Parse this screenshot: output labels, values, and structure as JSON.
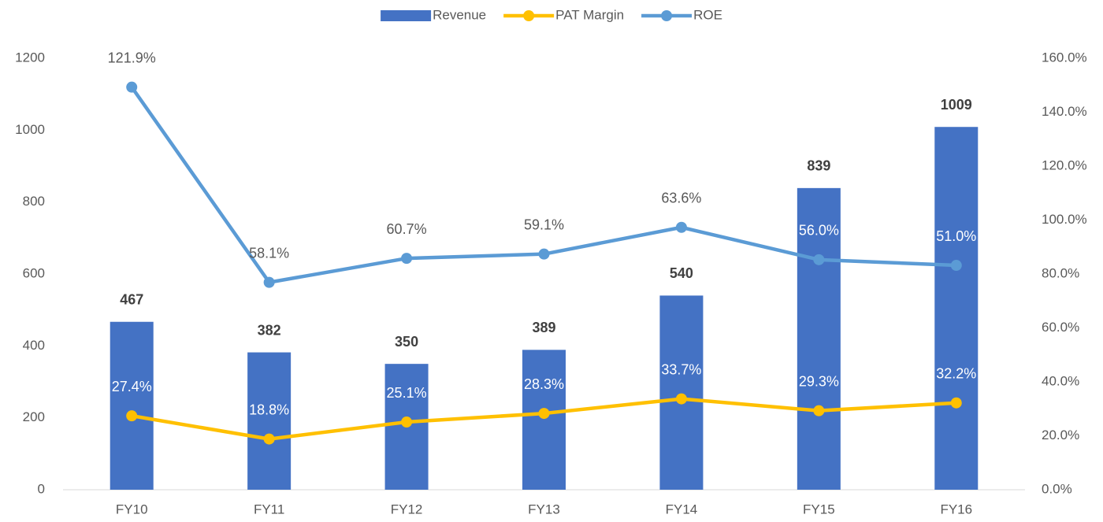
{
  "chart_data": {
    "type": "bar-line",
    "categories": [
      "FY10",
      "FY11",
      "FY12",
      "FY13",
      "FY14",
      "FY15",
      "FY16"
    ],
    "series": [
      {
        "name": "Revenue",
        "type": "bar",
        "color": "#4472c4",
        "values": [
          467,
          382,
          350,
          389,
          540,
          839,
          1009
        ]
      },
      {
        "name": "PAT Margin",
        "type": "line",
        "axis": "y2",
        "color": "#ffc000",
        "values": [
          27.4,
          18.8,
          25.1,
          28.3,
          33.7,
          29.3,
          32.2
        ],
        "value_labels": [
          "27.4%",
          "18.8%",
          "25.1%",
          "28.3%",
          "33.7%",
          "29.3%",
          "32.2%"
        ]
      },
      {
        "name": "ROE",
        "type": "line",
        "axis": "y2",
        "color": "#5b9bd5",
        "values": [
          121.9,
          58.1,
          60.7,
          59.1,
          63.6,
          56.0,
          51.0
        ],
        "value_labels": [
          "121.9%",
          "58.1%",
          "60.7%",
          "59.1%",
          "63.6%",
          "56.0%",
          "51.0%"
        ]
      }
    ],
    "stacked_lines": true,
    "ylim": [
      0,
      1200
    ],
    "yticks": [
      0,
      200,
      400,
      600,
      800,
      1000,
      1200
    ],
    "y2lim": [
      0,
      160
    ],
    "y2ticks": [
      {
        "value": 0,
        "label": "0.0%"
      },
      {
        "value": 20,
        "label": "20.0%"
      },
      {
        "value": 40,
        "label": "40.0%"
      },
      {
        "value": 60,
        "label": "60.0%"
      },
      {
        "value": 80,
        "label": "80.0%"
      },
      {
        "value": 100,
        "label": "100.0%"
      },
      {
        "value": 120,
        "label": "120.0%"
      },
      {
        "value": 140,
        "label": "140.0%"
      },
      {
        "value": 160,
        "label": "160.0%"
      }
    ],
    "grid": false,
    "legend": "top"
  }
}
